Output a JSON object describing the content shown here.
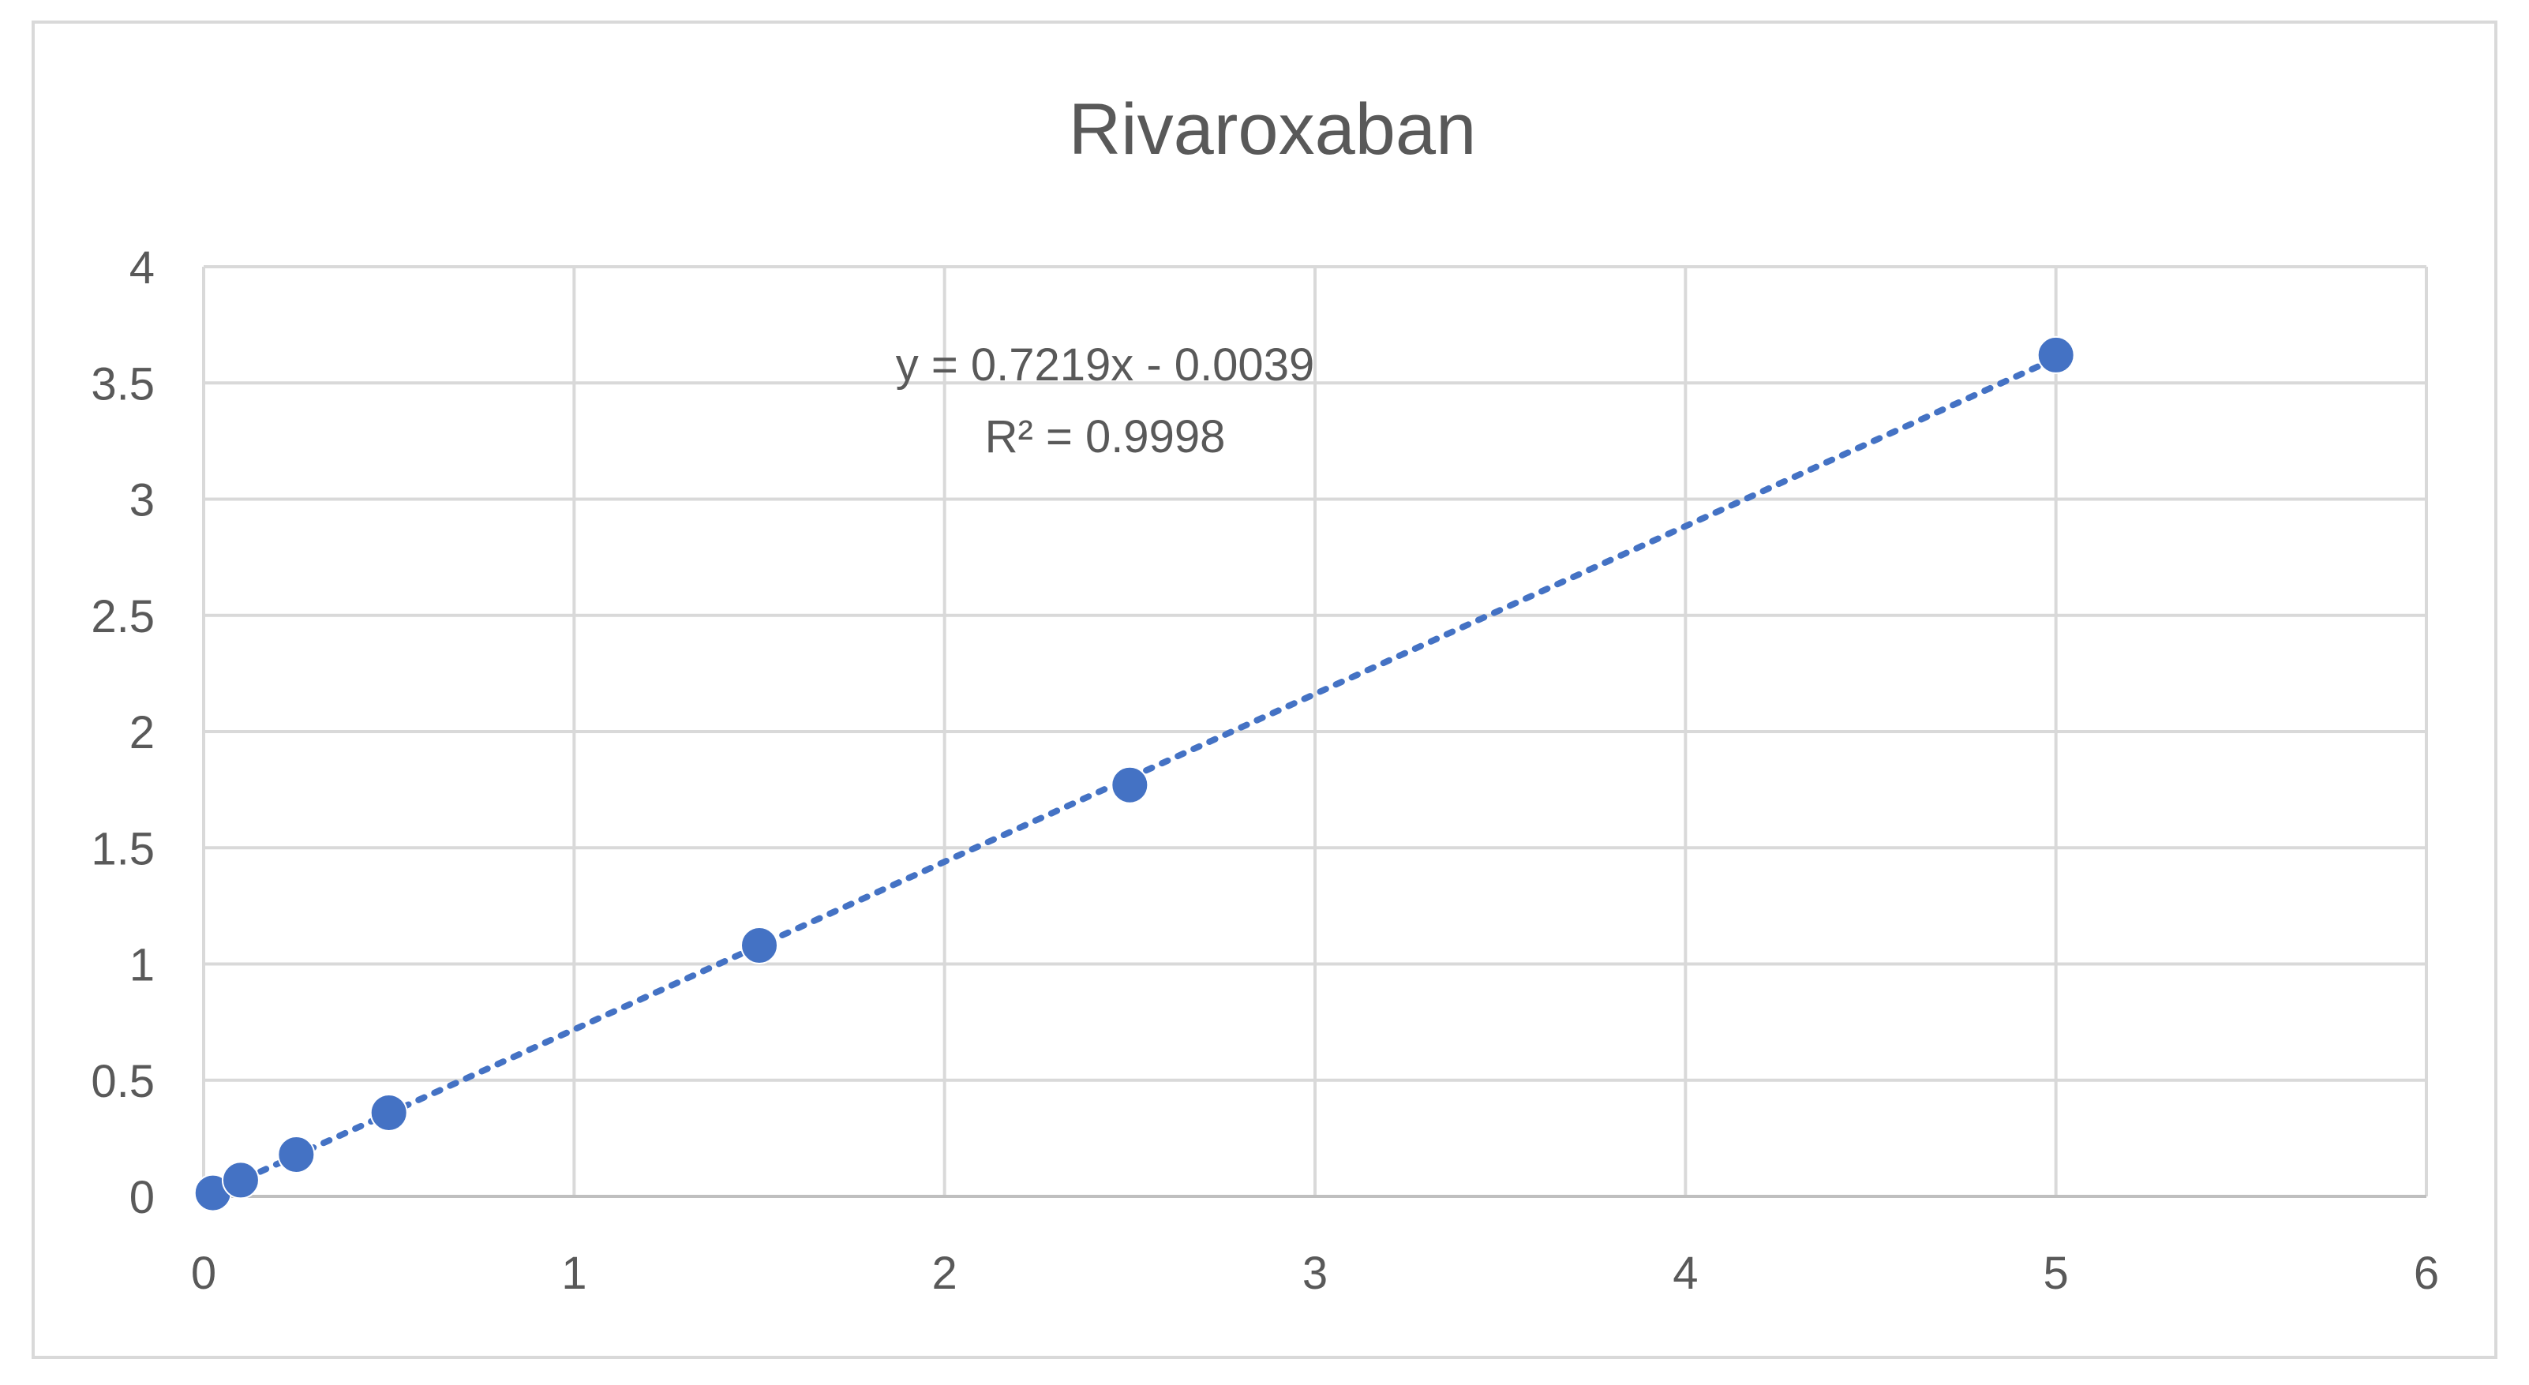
{
  "chart_data": {
    "type": "scatter",
    "title": "Rivaroxaban",
    "xlabel": "",
    "ylabel": "",
    "xlim": [
      0,
      6
    ],
    "ylim": [
      0,
      4
    ],
    "x_ticks": [
      "0",
      "1",
      "2",
      "3",
      "4",
      "5",
      "6"
    ],
    "y_ticks": [
      "0",
      "0.5",
      "1",
      "1.5",
      "2",
      "2.5",
      "3",
      "3.5",
      "4"
    ],
    "grid": true,
    "legend": "none",
    "series": [
      {
        "x": [
          0.025,
          0.1,
          0.25,
          0.5,
          1.5,
          2.5,
          5.0
        ],
        "y": [
          0.015,
          0.07,
          0.18,
          0.36,
          1.08,
          1.77,
          3.62
        ]
      }
    ],
    "trendline": {
      "type": "linear",
      "slope": 0.7219,
      "intercept": -0.0039,
      "equation": "y = 0.7219x - 0.0039",
      "r_squared": "R² = 0.9998"
    },
    "colors": {
      "marker": "#4472C4",
      "trendline": "#4472C4",
      "grid": "#d9d9d9",
      "text": "#595959",
      "border": "#d9d9d9"
    }
  }
}
